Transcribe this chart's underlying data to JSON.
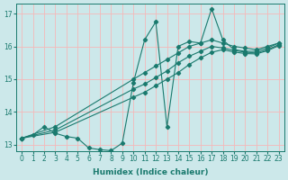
{
  "xlabel": "Humidex (Indice chaleur)",
  "background_color": "#cce8ea",
  "grid_color": "#f5b8b8",
  "line_color": "#1a7a6e",
  "xlim": [
    -0.5,
    23.5
  ],
  "ylim": [
    12.8,
    17.3
  ],
  "xticks": [
    0,
    1,
    2,
    3,
    4,
    5,
    6,
    7,
    8,
    9,
    10,
    11,
    12,
    13,
    14,
    15,
    16,
    17,
    18,
    19,
    20,
    21,
    22,
    23
  ],
  "yticks": [
    13,
    14,
    15,
    16,
    17
  ],
  "series": [
    {
      "x": [
        0,
        1,
        2,
        3,
        4,
        5,
        6,
        7,
        8,
        9,
        10,
        11,
        12,
        13,
        14,
        15,
        16,
        17,
        18,
        19,
        20,
        21,
        22,
        23
      ],
      "y": [
        13.2,
        13.3,
        13.55,
        13.35,
        13.25,
        13.2,
        12.9,
        12.85,
        12.82,
        13.05,
        14.9,
        16.2,
        16.75,
        13.55,
        16.0,
        16.15,
        16.1,
        17.15,
        16.2,
        15.9,
        15.85,
        15.85,
        15.95,
        16.1
      ]
    },
    {
      "x": [
        0,
        3,
        10,
        11,
        12,
        13,
        14,
        15,
        16,
        17,
        18,
        19,
        20,
        21,
        22,
        23
      ],
      "y": [
        13.2,
        13.55,
        15.0,
        15.2,
        15.4,
        15.6,
        15.8,
        16.0,
        16.1,
        16.2,
        16.1,
        16.0,
        15.95,
        15.9,
        16.0,
        16.1
      ]
    },
    {
      "x": [
        0,
        3,
        10,
        11,
        12,
        13,
        14,
        15,
        16,
        17,
        18,
        19,
        20,
        21,
        22,
        23
      ],
      "y": [
        13.2,
        13.45,
        14.7,
        14.85,
        15.05,
        15.25,
        15.5,
        15.7,
        15.85,
        16.0,
        15.95,
        15.88,
        15.82,
        15.8,
        15.9,
        16.05
      ]
    },
    {
      "x": [
        0,
        3,
        10,
        11,
        12,
        13,
        14,
        15,
        16,
        17,
        18,
        19,
        20,
        21,
        22,
        23
      ],
      "y": [
        13.2,
        13.38,
        14.45,
        14.6,
        14.8,
        15.0,
        15.2,
        15.45,
        15.65,
        15.82,
        15.9,
        15.83,
        15.78,
        15.77,
        15.87,
        16.02
      ]
    }
  ]
}
